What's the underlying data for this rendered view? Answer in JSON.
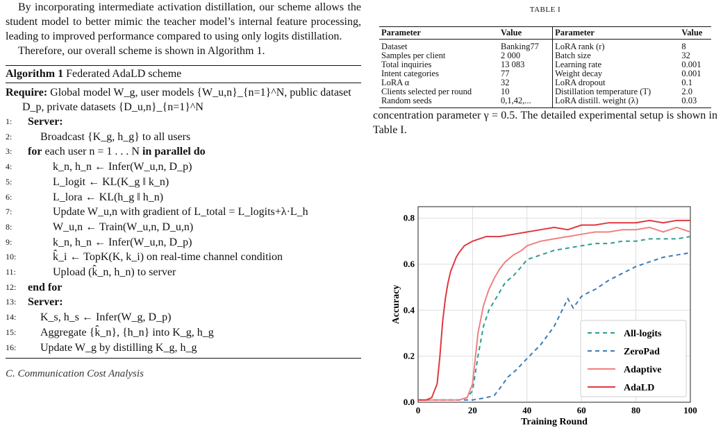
{
  "left": {
    "para1": "By incorporating intermediate activation distillation, our scheme allows the student model to better mimic the teacher model’s internal feature processing, leading to improved performance compared to using only logits distillation.",
    "para2": "Therefore, our overall scheme is shown in Algorithm 1.",
    "algorithm": {
      "label": "Algorithm 1",
      "title": "Federated AdaLD scheme",
      "require_kw": "Require:",
      "require_text": "Global model W_g, user models {W_u,n}_{n=1}^N, public dataset D_p, private datasets {D_u,n}_{n=1}^N",
      "lines": [
        {
          "num": "1:",
          "kw": "Server:",
          "text": ""
        },
        {
          "num": "2:",
          "kw": "",
          "text": "Broadcast {K_g, h_g} to all users"
        },
        {
          "num": "3:",
          "kw": "for",
          "text": "each user n = 1 . . . N",
          "kw2": "in parallel do"
        },
        {
          "num": "4:",
          "kw": "",
          "text": "k_n, h_n ← Infer(W_u,n, D_p)"
        },
        {
          "num": "5:",
          "kw": "",
          "text": "L_logit ← KL(K_g ‖ k_n)"
        },
        {
          "num": "6:",
          "kw": "",
          "text": "L_lora ← KL(h_g ‖ h_n)"
        },
        {
          "num": "7:",
          "kw": "",
          "text": "Update W_u,n with gradient of L_total = L_logits+λ·L_h"
        },
        {
          "num": "8:",
          "kw": "",
          "text": "W_u,n ← Train(W_u,n, D_u,n)"
        },
        {
          "num": "9:",
          "kw": "",
          "text": "k_n, h_n ← Infer(W_u,n, D_p)"
        },
        {
          "num": "10:",
          "kw": "",
          "text": "k̂_i ← TopK(K, k_i) on real-time channel condition"
        },
        {
          "num": "11:",
          "kw": "",
          "text": "Upload (k̂_n, h_n) to server"
        },
        {
          "num": "12:",
          "kw": "end for",
          "text": ""
        },
        {
          "num": "13:",
          "kw": "Server:",
          "text": ""
        },
        {
          "num": "14:",
          "kw": "",
          "text": "K_s, h_s ← Infer(W_g, D_p)"
        },
        {
          "num": "15:",
          "kw": "",
          "text": "Aggregate {k̂_n}, {h_n} into K_g, h_g"
        },
        {
          "num": "16:",
          "kw": "",
          "text": "Update W_g by distilling K_g, h_g"
        }
      ]
    },
    "section_heading": "C. Communication Cost Analysis"
  },
  "right": {
    "table_title": "TABLE I",
    "table_headers": [
      "Parameter",
      "Value",
      "Parameter",
      "Value"
    ],
    "table_rows": [
      [
        "Dataset",
        "Banking77",
        "LoRA rank (r)",
        "8"
      ],
      [
        "Samples per client",
        "2 000",
        "Batch size",
        "32"
      ],
      [
        "Total inquiries",
        "13 083",
        "Learning rate",
        "0.001"
      ],
      [
        "Intent categories",
        "77",
        "Weight decay",
        "0.001"
      ],
      [
        "LoRA α",
        "32",
        "LoRA dropout",
        "0.1"
      ],
      [
        "Clients selected per round",
        "10",
        "Distillation temperature (T)",
        "2.0"
      ],
      [
        "Random seeds",
        "0,1,42,...",
        "LoRA distill. weight (λ)",
        "0.03"
      ]
    ],
    "caption_text": "concentration parameter γ = 0.5. The detailed experimental setup is shown in Table I."
  },
  "chart_data": {
    "type": "line",
    "xlabel": "Training Round",
    "ylabel": "Accuracy",
    "xlim": [
      0,
      100
    ],
    "ylim": [
      0,
      0.85
    ],
    "xticks": [
      0,
      20,
      40,
      60,
      80,
      100
    ],
    "yticks": [
      0.0,
      0.2,
      0.4,
      0.6,
      0.8
    ],
    "legend_position": "lower-right",
    "grid": true,
    "series": [
      {
        "name": "All-logits",
        "color": "#2a9d8f",
        "dash": "6,5",
        "x": [
          0,
          5,
          10,
          15,
          18,
          20,
          22,
          24,
          26,
          28,
          30,
          32,
          35,
          38,
          40,
          45,
          50,
          55,
          60,
          65,
          70,
          75,
          80,
          85,
          90,
          95,
          100
        ],
        "y": [
          0.01,
          0.01,
          0.01,
          0.01,
          0.02,
          0.05,
          0.2,
          0.33,
          0.4,
          0.44,
          0.48,
          0.52,
          0.55,
          0.59,
          0.62,
          0.64,
          0.66,
          0.67,
          0.68,
          0.69,
          0.69,
          0.7,
          0.7,
          0.71,
          0.71,
          0.71,
          0.72
        ]
      },
      {
        "name": "ZeroPad",
        "color": "#3a7ab8",
        "dash": "6,5",
        "x": [
          0,
          10,
          20,
          25,
          28,
          30,
          33,
          36,
          40,
          45,
          50,
          55,
          57,
          60,
          63,
          65,
          70,
          75,
          80,
          85,
          90,
          95,
          100
        ],
        "y": [
          0.01,
          0.01,
          0.01,
          0.02,
          0.03,
          0.06,
          0.11,
          0.14,
          0.19,
          0.25,
          0.33,
          0.45,
          0.41,
          0.46,
          0.48,
          0.49,
          0.53,
          0.56,
          0.59,
          0.61,
          0.63,
          0.64,
          0.65
        ]
      },
      {
        "name": "Adaptive",
        "color": "#f08080",
        "dash": "",
        "x": [
          0,
          5,
          10,
          15,
          18,
          20,
          22,
          24,
          26,
          28,
          30,
          32,
          35,
          38,
          40,
          45,
          50,
          55,
          60,
          65,
          70,
          75,
          80,
          85,
          90,
          95,
          100
        ],
        "y": [
          0.01,
          0.01,
          0.01,
          0.01,
          0.02,
          0.08,
          0.3,
          0.42,
          0.49,
          0.54,
          0.58,
          0.61,
          0.64,
          0.66,
          0.68,
          0.7,
          0.71,
          0.72,
          0.73,
          0.74,
          0.74,
          0.75,
          0.75,
          0.76,
          0.74,
          0.76,
          0.74
        ]
      },
      {
        "name": "AdaLD",
        "color": "#e0383e",
        "dash": "",
        "x": [
          0,
          3,
          5,
          7,
          8,
          9,
          10,
          11,
          12,
          13,
          14,
          15,
          17,
          20,
          25,
          30,
          35,
          40,
          45,
          50,
          55,
          60,
          65,
          70,
          75,
          80,
          85,
          90,
          95,
          100
        ],
        "y": [
          0.01,
          0.01,
          0.02,
          0.08,
          0.2,
          0.35,
          0.45,
          0.52,
          0.57,
          0.6,
          0.63,
          0.65,
          0.68,
          0.7,
          0.72,
          0.72,
          0.73,
          0.74,
          0.75,
          0.76,
          0.75,
          0.77,
          0.77,
          0.78,
          0.78,
          0.78,
          0.79,
          0.78,
          0.79,
          0.79
        ]
      }
    ]
  }
}
